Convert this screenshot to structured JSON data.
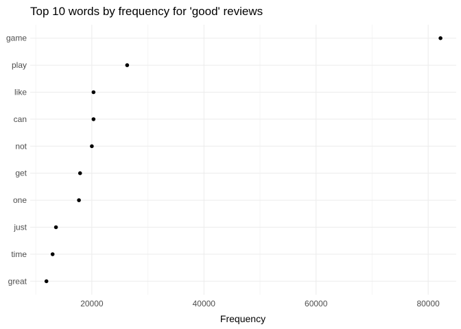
{
  "chart_data": {
    "type": "scatter",
    "title": "Top 10 words by frequency for 'good' reviews",
    "xlabel": "Frequency",
    "ylabel": "",
    "categories": [
      "game",
      "play",
      "like",
      "can",
      "not",
      "get",
      "one",
      "just",
      "time",
      "great"
    ],
    "values": [
      82200,
      26300,
      20300,
      20300,
      20000,
      17900,
      17700,
      13600,
      13000,
      11900
    ],
    "xlim": [
      9000,
      85000
    ],
    "x_ticks": [
      20000,
      40000,
      60000,
      80000
    ],
    "x_tick_labels": [
      "20000",
      "40000",
      "60000",
      "80000"
    ],
    "grid": true,
    "legend": "none",
    "colors": {
      "point": "#000000",
      "grid_major": "#ebebeb",
      "grid_minor": "#f5f5f5",
      "background": "#ffffff"
    }
  }
}
